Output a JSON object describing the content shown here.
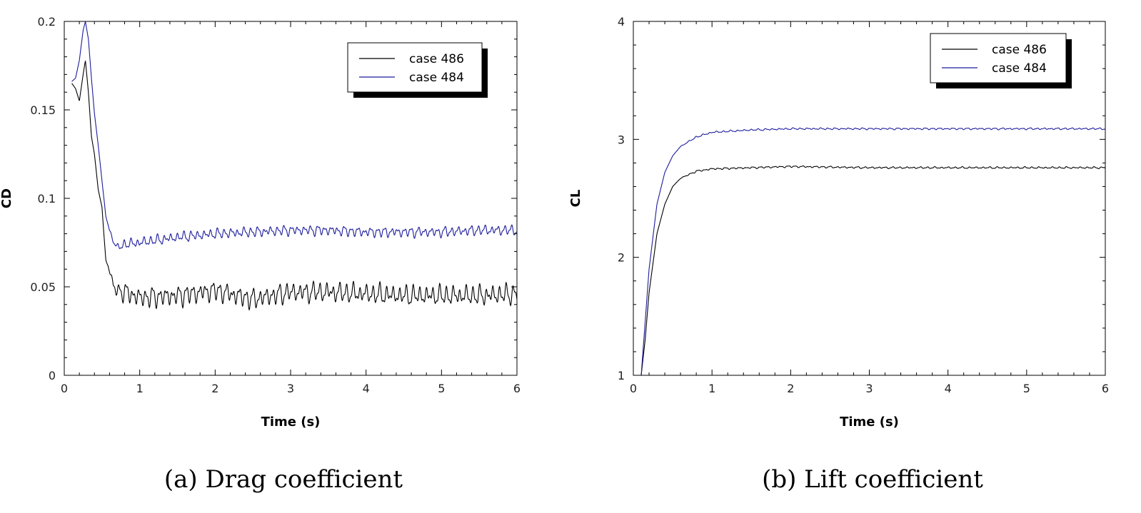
{
  "colors": {
    "case486": "#000000",
    "case484": "#1c1c9c"
  },
  "chart_data": [
    {
      "type": "line",
      "caption": "(a) Drag coefficient",
      "xlabel": "Time (s)",
      "ylabel": "CD",
      "xlim": [
        0,
        6
      ],
      "ylim": [
        0,
        0.2
      ],
      "xticks": [
        "0",
        "1",
        "2",
        "3",
        "4",
        "5",
        "6"
      ],
      "yticks": [
        "0",
        "0.05",
        "0.1",
        "0.15",
        "0.2"
      ],
      "legend_position": "top-right",
      "series": [
        {
          "name": "case 486",
          "color": "#000000",
          "x": [
            0.1,
            0.15,
            0.2,
            0.25,
            0.28,
            0.32,
            0.36,
            0.4,
            0.45,
            0.5,
            0.55,
            0.6,
            0.65,
            0.7,
            0.8,
            1.0,
            1.5,
            2.0,
            2.5,
            3.0,
            3.5,
            4.0,
            4.5,
            5.0,
            5.5,
            6.0
          ],
          "values": [
            0.165,
            0.162,
            0.155,
            0.17,
            0.178,
            0.16,
            0.135,
            0.125,
            0.105,
            0.095,
            0.065,
            0.06,
            0.05,
            0.048,
            0.047,
            0.044,
            0.045,
            0.048,
            0.043,
            0.047,
            0.047,
            0.046,
            0.045,
            0.045,
            0.045,
            0.046
          ],
          "oscillation_amplitude": 0.006
        },
        {
          "name": "case 484",
          "color": "#1c1c9c",
          "x": [
            0.1,
            0.15,
            0.2,
            0.25,
            0.28,
            0.32,
            0.36,
            0.4,
            0.45,
            0.5,
            0.55,
            0.6,
            0.65,
            0.7,
            0.8,
            1.0,
            1.5,
            2.0,
            2.5,
            3.0,
            3.5,
            4.0,
            4.5,
            5.0,
            5.5,
            6.0
          ],
          "values": [
            0.166,
            0.168,
            0.178,
            0.195,
            0.2,
            0.19,
            0.168,
            0.148,
            0.13,
            0.11,
            0.09,
            0.082,
            0.076,
            0.072,
            0.074,
            0.075,
            0.078,
            0.08,
            0.081,
            0.082,
            0.082,
            0.081,
            0.081,
            0.081,
            0.082,
            0.082
          ],
          "oscillation_amplitude": 0.003
        }
      ]
    },
    {
      "type": "line",
      "caption": "(b) Lift coefficient",
      "xlabel": "Time (s)",
      "ylabel": "CL",
      "xlim": [
        0,
        6
      ],
      "ylim": [
        1,
        4
      ],
      "xticks": [
        "0",
        "1",
        "2",
        "3",
        "4",
        "5",
        "6"
      ],
      "yticks": [
        "1",
        "2",
        "3",
        "4"
      ],
      "legend_position": "top-right",
      "series": [
        {
          "name": "case 486",
          "color": "#000000",
          "x": [
            0.1,
            0.15,
            0.2,
            0.3,
            0.4,
            0.5,
            0.6,
            0.8,
            1.0,
            1.5,
            2.0,
            3.0,
            4.0,
            5.0,
            6.0
          ],
          "values": [
            1.0,
            1.3,
            1.7,
            2.2,
            2.45,
            2.6,
            2.67,
            2.73,
            2.75,
            2.76,
            2.77,
            2.76,
            2.76,
            2.76,
            2.76
          ],
          "oscillation_amplitude": 0.008
        },
        {
          "name": "case 484",
          "color": "#1c1c9c",
          "x": [
            0.1,
            0.15,
            0.2,
            0.3,
            0.4,
            0.5,
            0.6,
            0.8,
            1.0,
            1.5,
            2.0,
            3.0,
            4.0,
            5.0,
            6.0
          ],
          "values": [
            1.0,
            1.45,
            1.9,
            2.45,
            2.72,
            2.86,
            2.94,
            3.02,
            3.06,
            3.08,
            3.09,
            3.09,
            3.09,
            3.09,
            3.09
          ],
          "oscillation_amplitude": 0.008
        }
      ]
    }
  ]
}
